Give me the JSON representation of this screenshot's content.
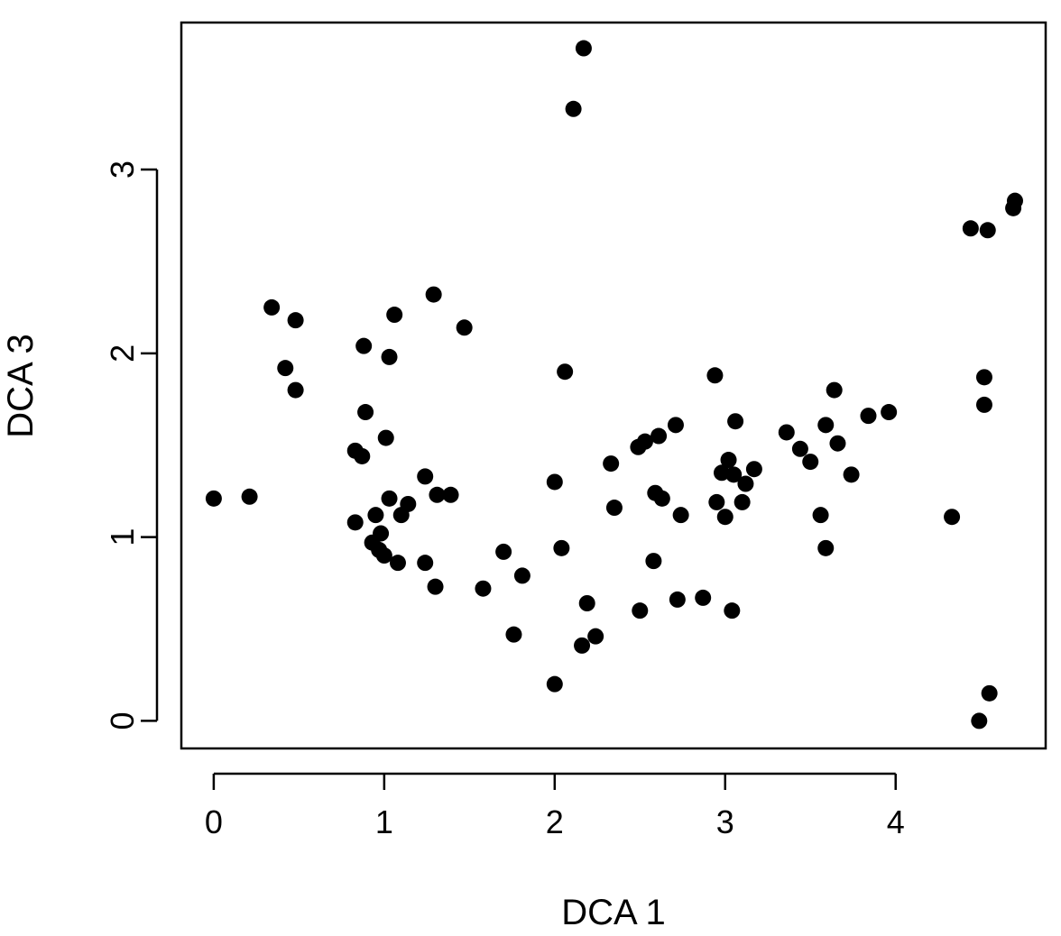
{
  "chart_data": {
    "type": "scatter",
    "title": "",
    "xlabel": "DCA 1",
    "ylabel": "DCA 3",
    "xlim": [
      -0.19,
      4.88
    ],
    "ylim": [
      -0.15,
      3.8
    ],
    "xticks": [
      0,
      1,
      2,
      3,
      4
    ],
    "yticks": [
      0,
      1,
      2,
      3
    ],
    "grid": false,
    "legend": "none",
    "marker_color": "#000000",
    "points": [
      [
        0.0,
        1.21
      ],
      [
        0.21,
        1.22
      ],
      [
        0.34,
        2.25
      ],
      [
        0.42,
        1.92
      ],
      [
        0.48,
        2.18
      ],
      [
        0.48,
        1.8
      ],
      [
        0.83,
        1.08
      ],
      [
        0.83,
        1.47
      ],
      [
        0.87,
        1.44
      ],
      [
        0.88,
        2.04
      ],
      [
        0.89,
        1.68
      ],
      [
        0.93,
        0.97
      ],
      [
        0.95,
        1.12
      ],
      [
        0.97,
        0.93
      ],
      [
        0.98,
        1.02
      ],
      [
        1.0,
        0.9
      ],
      [
        1.01,
        1.54
      ],
      [
        1.03,
        1.98
      ],
      [
        1.03,
        1.21
      ],
      [
        1.06,
        2.21
      ],
      [
        1.08,
        0.86
      ],
      [
        1.1,
        1.12
      ],
      [
        1.14,
        1.18
      ],
      [
        1.24,
        1.33
      ],
      [
        1.24,
        0.86
      ],
      [
        1.29,
        2.32
      ],
      [
        1.3,
        0.73
      ],
      [
        1.31,
        1.23
      ],
      [
        1.39,
        1.23
      ],
      [
        1.47,
        2.14
      ],
      [
        1.58,
        0.72
      ],
      [
        1.7,
        0.92
      ],
      [
        1.76,
        0.47
      ],
      [
        1.81,
        0.79
      ],
      [
        2.0,
        1.3
      ],
      [
        2.0,
        0.2
      ],
      [
        2.04,
        0.94
      ],
      [
        2.06,
        1.9
      ],
      [
        2.11,
        3.33
      ],
      [
        2.16,
        0.41
      ],
      [
        2.17,
        3.66
      ],
      [
        2.19,
        0.64
      ],
      [
        2.24,
        0.46
      ],
      [
        2.33,
        1.4
      ],
      [
        2.35,
        1.16
      ],
      [
        2.49,
        1.49
      ],
      [
        2.5,
        0.6
      ],
      [
        2.53,
        1.52
      ],
      [
        2.58,
        0.87
      ],
      [
        2.59,
        1.24
      ],
      [
        2.61,
        1.55
      ],
      [
        2.63,
        1.21
      ],
      [
        2.71,
        1.61
      ],
      [
        2.72,
        0.66
      ],
      [
        2.74,
        1.12
      ],
      [
        2.87,
        0.67
      ],
      [
        2.94,
        1.88
      ],
      [
        2.95,
        1.19
      ],
      [
        2.98,
        1.35
      ],
      [
        3.0,
        1.11
      ],
      [
        3.02,
        1.42
      ],
      [
        3.04,
        0.6
      ],
      [
        3.05,
        1.34
      ],
      [
        3.06,
        1.63
      ],
      [
        3.1,
        1.19
      ],
      [
        3.12,
        1.29
      ],
      [
        3.17,
        1.37
      ],
      [
        3.36,
        1.57
      ],
      [
        3.44,
        1.48
      ],
      [
        3.5,
        1.41
      ],
      [
        3.56,
        1.12
      ],
      [
        3.59,
        1.61
      ],
      [
        3.59,
        0.94
      ],
      [
        3.64,
        1.8
      ],
      [
        3.66,
        1.51
      ],
      [
        3.74,
        1.34
      ],
      [
        3.84,
        1.66
      ],
      [
        3.96,
        1.68
      ],
      [
        4.33,
        1.11
      ],
      [
        4.44,
        2.68
      ],
      [
        4.49,
        0.0
      ],
      [
        4.52,
        1.87
      ],
      [
        4.52,
        1.72
      ],
      [
        4.54,
        2.67
      ],
      [
        4.55,
        0.15
      ],
      [
        4.69,
        2.79
      ],
      [
        4.7,
        2.83
      ]
    ]
  }
}
